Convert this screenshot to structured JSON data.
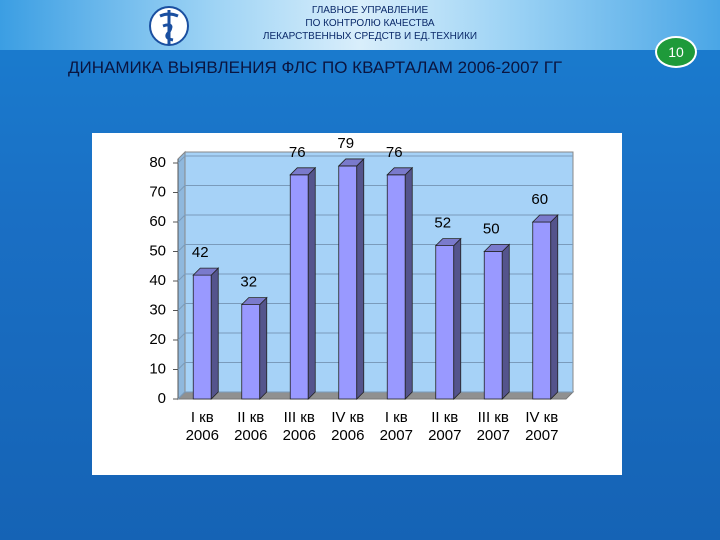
{
  "header": {
    "lines": [
      "ГЛАВНОЕ УПРАВЛЕНИЕ",
      "ПО КОНТРОЛЮ КАЧЕСТВА",
      "ЛЕКАРСТВЕННЫХ СРЕДСТВ И ЕД.ТЕХНИКИ"
    ]
  },
  "slide_number": "10",
  "chart_data": {
    "type": "bar",
    "title": "ДИНАМИКА ВЫЯВЛЕНИЯ ФЛС ПО КВАРТАЛАМ 2006-2007 ГГ",
    "categories": [
      "I кв 2006",
      "II кв 2006",
      "III кв 2006",
      "IV кв 2006",
      "I кв 2007",
      "II кв 2007",
      "III кв 2007",
      "IV кв 2007"
    ],
    "values": [
      42,
      32,
      76,
      79,
      76,
      52,
      50,
      60
    ],
    "color": "#9999ff",
    "ylim": [
      0,
      80
    ],
    "yticks": [
      0,
      10,
      20,
      30,
      40,
      50,
      60,
      70,
      80
    ],
    "grid": true
  }
}
